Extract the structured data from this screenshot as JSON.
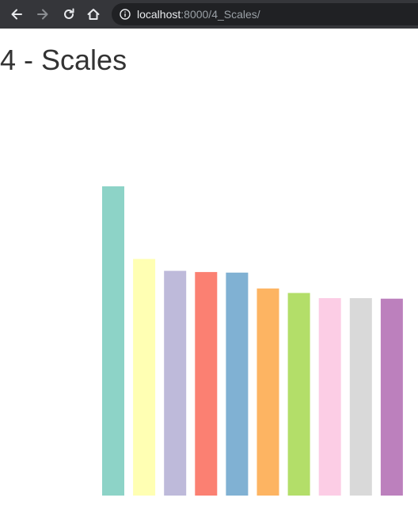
{
  "browser": {
    "url_host": "localhost",
    "url_rest": ":8000/4_Scales/",
    "icons": {
      "back": "arrow-left-icon",
      "forward": "arrow-right-icon",
      "reload": "reload-icon",
      "home": "home-icon",
      "info": "info-icon"
    }
  },
  "page": {
    "title": "4 - Scales"
  },
  "chart_data": {
    "type": "bar",
    "title": "",
    "xlabel": "",
    "ylabel": "",
    "values": [
      5.45,
      4.17,
      3.96,
      3.94,
      3.93,
      3.65,
      3.57,
      3.48,
      3.48,
      3.47
    ],
    "ylim": [
      0,
      5.45
    ],
    "colors": [
      "#8dd3c7",
      "#ffffb3",
      "#bebada",
      "#fb8072",
      "#80b1d3",
      "#fdb462",
      "#b3de69",
      "#fccde5",
      "#d9d9d9",
      "#bc80bd"
    ],
    "grid": false,
    "legend": "none"
  }
}
